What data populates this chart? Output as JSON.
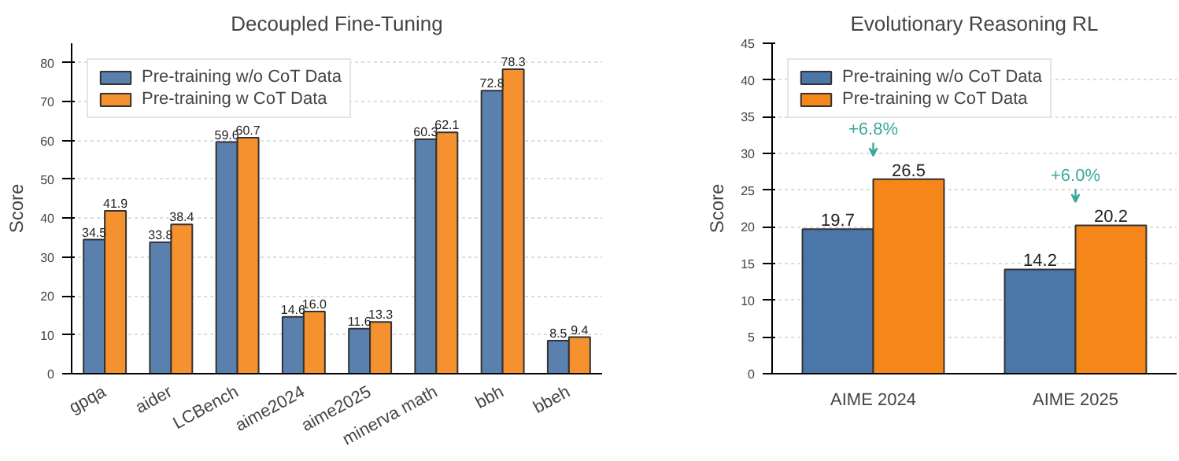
{
  "chart_data": [
    {
      "type": "bar",
      "title": "Decoupled Fine-Tuning",
      "ylabel": "Score",
      "categories": [
        "gpqa",
        "aider",
        "LCBench",
        "aime2024",
        "aime2025",
        "minerva math",
        "bbh",
        "bbeh"
      ],
      "series": [
        {
          "name": "Pre-training w/o CoT Data",
          "color": "#5a80ad",
          "values": [
            34.5,
            33.8,
            59.6,
            14.6,
            11.6,
            60.3,
            72.8,
            8.5
          ],
          "value_labels": [
            "34.5",
            "33.8",
            "59.6",
            "14.6",
            "11.6",
            "60.3",
            "72.8",
            "8.5"
          ]
        },
        {
          "name": "Pre-training w CoT Data",
          "color": "#f5922f",
          "values": [
            41.9,
            38.4,
            60.7,
            16.0,
            13.3,
            62.1,
            78.3,
            9.4
          ],
          "value_labels": [
            "41.9",
            "38.4",
            "60.7",
            "16.0",
            "13.3",
            "62.1",
            "78.3",
            "9.4"
          ]
        }
      ],
      "ylim": [
        0,
        85
      ],
      "yticks": [
        0,
        10,
        20,
        30,
        40,
        50,
        60,
        70,
        80
      ],
      "grid": "y",
      "legend": "top left"
    },
    {
      "type": "bar",
      "title": "Evolutionary Reasoning RL",
      "ylabel": "Score",
      "categories": [
        "AIME 2024",
        "AIME 2025"
      ],
      "series": [
        {
          "name": "Pre-training w/o CoT Data",
          "color": "#4a76a8",
          "values": [
            19.7,
            14.2
          ]
        },
        {
          "name": "Pre-training w CoT Data",
          "color": "#f5861a",
          "values": [
            26.5,
            20.2
          ]
        }
      ],
      "ylim": [
        0,
        45
      ],
      "yticks": [
        0,
        5,
        10,
        15,
        20,
        25,
        30,
        35,
        40,
        45
      ],
      "grid": "y",
      "legend": "top left",
      "data_labels": true,
      "annotations": [
        "+6.8%",
        "+6.0%"
      ]
    }
  ]
}
